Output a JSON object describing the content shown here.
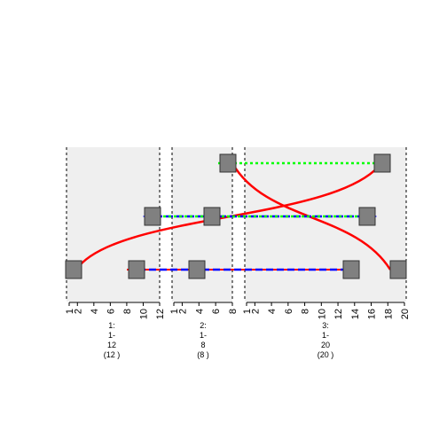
{
  "colors": {
    "panel": "#efefef",
    "boundary": "#000000",
    "block_fill": "#808080",
    "block_stroke": "#333333",
    "curve": "#ff0000",
    "blue_track": "#0000ff",
    "green_track": "#00ff00"
  },
  "panels": [
    {
      "id": 1,
      "ticks": [
        "1",
        "2",
        "4",
        "6",
        "8",
        "10",
        "12"
      ],
      "caption": [
        "1:",
        "1-",
        "12",
        "(12 )"
      ]
    },
    {
      "id": 2,
      "ticks": [
        "1",
        "2",
        "4",
        "6",
        "8"
      ],
      "caption": [
        "2:",
        "1-",
        "8",
        "(8 )"
      ]
    },
    {
      "id": 3,
      "ticks": [
        "1",
        "2",
        "4",
        "6",
        "8",
        "10",
        "12",
        "14",
        "16",
        "18",
        "20"
      ],
      "caption": [
        "3:",
        "1-",
        "20",
        "(20 )"
      ]
    }
  ]
}
